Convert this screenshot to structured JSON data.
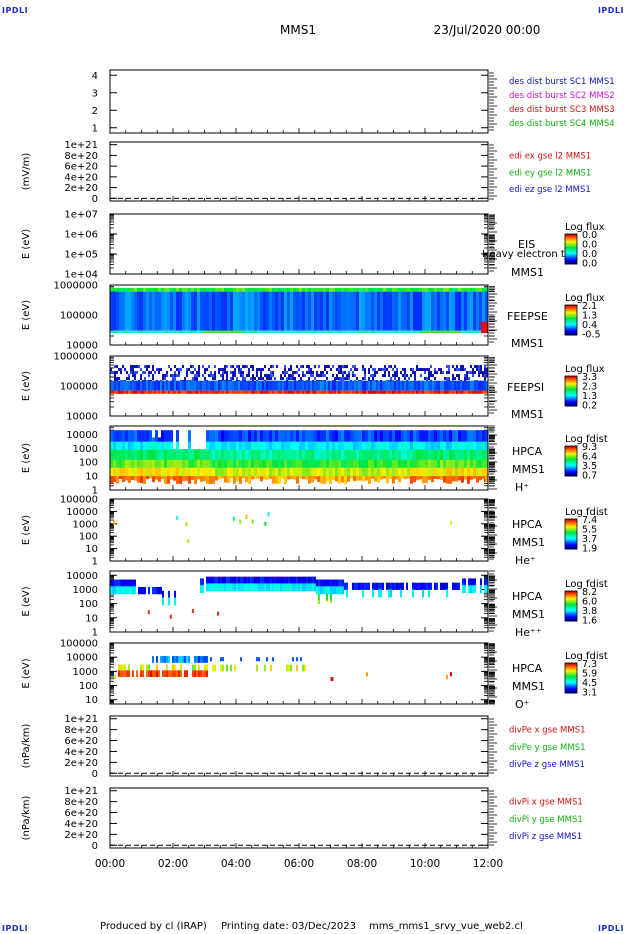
{
  "corner_mark": "IPDLI",
  "header": {
    "spacecraft": "MMS1",
    "date": "23/Jul/2020 00:00"
  },
  "footer": {
    "produced_by": "Produced by cl (IRAP)",
    "printing_date": "Printing date: 03/Dec/2023",
    "script": "mms_mms1_srvy_vue_web2.cl"
  },
  "time_axis": {
    "ticks": [
      "00:00",
      "02:00",
      "04:00",
      "06:00",
      "08:00",
      "10:00",
      "12:00"
    ],
    "range_hours": [
      0,
      12
    ]
  },
  "panels": [
    {
      "id": "dist",
      "type": "line",
      "empty": true,
      "ylabel": "",
      "yticks": [
        "1",
        "2",
        "3",
        "4"
      ],
      "ylim": [
        0.7,
        4.3
      ],
      "legend": [
        {
          "text": "des dist burst SC1 MMS1",
          "color": "#1010d0"
        },
        {
          "text": "des dist burst SC2 MMS2",
          "color": "#d010d0"
        },
        {
          "text": "des dist burst SC3 MMS3",
          "color": "#d01010"
        },
        {
          "text": "des dist burst SC4 MMS4",
          "color": "#10b010"
        }
      ]
    },
    {
      "id": "edi",
      "type": "line",
      "empty": true,
      "zero_line": true,
      "ylabel": "(mV/m)",
      "yticks": [
        "0",
        "2e+20",
        "4e+20",
        "6e+20",
        "8e+20",
        "1e+21"
      ],
      "ylim": [
        -5e+19,
        1.05e+21
      ],
      "legend": [
        {
          "text": "edi ex gse l2 MMS1",
          "color": "#d01010"
        },
        {
          "text": "edi ey gse l2 MMS1",
          "color": "#10b010"
        },
        {
          "text": "edi ez gse l2 MMS1",
          "color": "#1010d0"
        }
      ]
    },
    {
      "id": "eis",
      "type": "heatmap",
      "empty": true,
      "log": true,
      "ylabel": "E (eV)",
      "yticks": [
        "1e+04",
        "1e+05",
        "1e+06",
        "1e+07"
      ],
      "ylim": [
        10000.0,
        10000000.0
      ],
      "right_labels": [
        "EIS",
        "Heavy electron top",
        "MMS1"
      ],
      "colorbar": {
        "title": "Log flux",
        "ticks": [
          "0.0",
          "0.0",
          "0.0",
          "0.0"
        ]
      }
    },
    {
      "id": "feepse",
      "type": "heatmap",
      "log": true,
      "ylabel": "E (eV)",
      "yticks": [
        "10000",
        "100000",
        "1000000"
      ],
      "ylim": [
        10000.0,
        1000000.0
      ],
      "right_labels": [
        "FEEPSE",
        "MMS1"
      ],
      "colorbar": {
        "title": "Log flux",
        "ticks": [
          "2.1",
          "1.3",
          "0.4",
          "-0.5"
        ]
      },
      "data_range_ev": [
        25000,
        1000000
      ],
      "layers": [
        {
          "label": "top band",
          "e_range": [
            600000,
            800000
          ],
          "value": 0.55
        },
        {
          "label": "main band",
          "e_range": [
            30000,
            600000
          ],
          "value": 0.22
        },
        {
          "label": "low band",
          "e_range": [
            25000,
            30000
          ],
          "value": 0.4
        }
      ]
    },
    {
      "id": "feepsi",
      "type": "heatmap",
      "log": true,
      "ylabel": "E (eV)",
      "yticks": [
        "10000",
        "100000",
        "1000000"
      ],
      "ylim": [
        10000.0,
        1000000.0
      ],
      "right_labels": [
        "FEEPSI",
        "MMS1"
      ],
      "colorbar": {
        "title": "Log flux",
        "ticks": [
          "3.3",
          "2.3",
          "1.3",
          "0.2"
        ]
      },
      "layers": [
        {
          "label": "sparse top",
          "e_range": [
            150000,
            500000
          ],
          "value": 0.15
        },
        {
          "label": "main band",
          "e_range": [
            70000,
            150000
          ],
          "value": 0.2
        },
        {
          "label": "low band",
          "e_range": [
            55000,
            70000
          ],
          "value": 0.95
        }
      ]
    },
    {
      "id": "hpca_h",
      "type": "heatmap",
      "log": true,
      "ylabel": "E (eV)",
      "yticks": [
        "1",
        "10",
        "100",
        "1000",
        "10000"
      ],
      "ylim": [
        1,
        40000
      ],
      "right_labels": [
        "HPCA",
        "MMS1",
        "H⁺"
      ],
      "colorbar": {
        "title": "Log fdist",
        "ticks": [
          "9.3",
          "6.4",
          "3.5",
          "0.7"
        ]
      },
      "profile": {
        "upper_ev": 20000,
        "lower_ev": 3,
        "gap_hours": [
          1.9,
          3.1
        ]
      }
    },
    {
      "id": "hpca_he",
      "type": "heatmap",
      "log": true,
      "ylabel": "E (eV)",
      "yticks": [
        "1",
        "10",
        "100",
        "1000",
        "10000",
        "100000"
      ],
      "ylim": [
        1,
        100000
      ],
      "right_labels": [
        "HPCA",
        "MMS1",
        "He⁺"
      ],
      "colorbar": {
        "title": "Log fdist",
        "ticks": [
          "7.4",
          "5.5",
          "3.7",
          "1.9"
        ]
      }
    },
    {
      "id": "hpca_hepp",
      "type": "heatmap",
      "log": true,
      "ylabel": "E (eV)",
      "yticks": [
        "1",
        "10",
        "100",
        "1000",
        "10000"
      ],
      "ylim": [
        1,
        20000
      ],
      "right_labels": [
        "HPCA",
        "MMS1",
        "He⁺⁺"
      ],
      "colorbar": {
        "title": "Log fdist",
        "ticks": [
          "8.2",
          "6.0",
          "3.8",
          "1.6"
        ]
      }
    },
    {
      "id": "hpca_o",
      "type": "heatmap",
      "log": true,
      "ylabel": "E (eV)",
      "yticks": [
        "10",
        "100",
        "1000",
        "10000",
        "100000"
      ],
      "ylim": [
        5,
        100000
      ],
      "right_labels": [
        "HPCA",
        "MMS1",
        "O⁺"
      ],
      "colorbar": {
        "title": "Log fdist",
        "ticks": [
          "7.3",
          "5.9",
          "4.5",
          "3.1"
        ]
      }
    },
    {
      "id": "divpe",
      "type": "line",
      "empty": true,
      "zero_line": true,
      "ylabel": "(nPa/km)",
      "yticks": [
        "0",
        "2e+20",
        "4e+20",
        "6e+20",
        "8e+20",
        "1e+21"
      ],
      "ylim": [
        -5e+19,
        1.05e+21
      ],
      "legend": [
        {
          "text": "divPe x gse MMS1",
          "color": "#d01010"
        },
        {
          "text": "divPe y gse MMS1",
          "color": "#10b010"
        },
        {
          "text": "divPe z gse MMS1",
          "color": "#1010d0"
        }
      ]
    },
    {
      "id": "divpi",
      "type": "line",
      "empty": true,
      "zero_line": true,
      "ylabel": "(nPa/km)",
      "yticks": [
        "0",
        "2e+20",
        "4e+20",
        "6e+20",
        "8e+20",
        "1e+21"
      ],
      "ylim": [
        -5e+19,
        1.05e+21
      ],
      "legend": [
        {
          "text": "divPi x gse MMS1",
          "color": "#d01010"
        },
        {
          "text": "divPi y gse MMS1",
          "color": "#10b010"
        },
        {
          "text": "divPi z gse MMS1",
          "color": "#1010d0"
        }
      ]
    }
  ],
  "chart_data": {
    "type": "heatmap",
    "title": "MMS1 23/Jul/2020 00:00",
    "xlabel": "",
    "x_range_hours": [
      0,
      12
    ],
    "x_ticks": [
      "00:00",
      "02:00",
      "04:00",
      "06:00",
      "08:00",
      "10:00",
      "12:00"
    ],
    "panels": [
      "dist",
      "edi",
      "eis",
      "feepse",
      "feepsi",
      "hpca_h",
      "hpca_he",
      "hpca_hepp",
      "hpca_o",
      "divpe",
      "divpi"
    ]
  }
}
